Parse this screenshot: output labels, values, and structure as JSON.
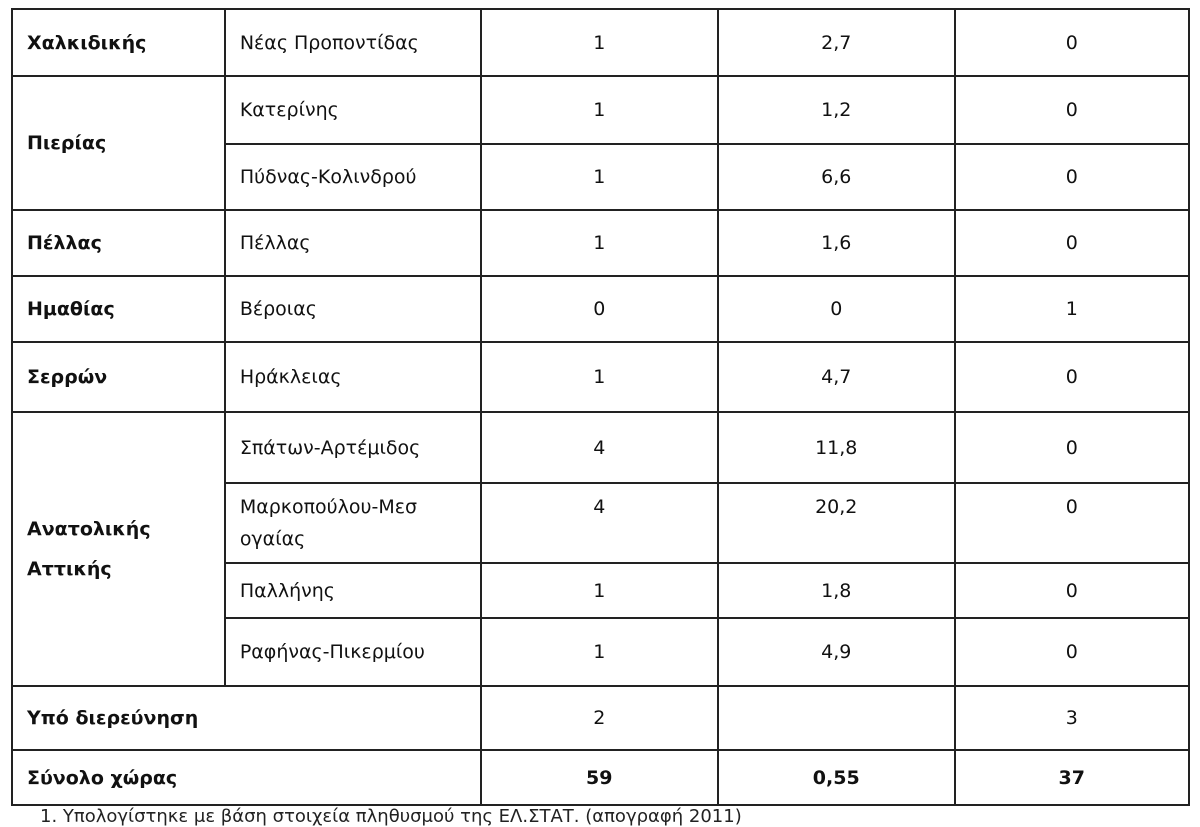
{
  "rows": [
    {
      "region": "Χαλκιδικής",
      "municipality": "Νέας Προποντίδας",
      "c1": "1",
      "c2": "2,7",
      "c3": "0"
    },
    {
      "region": "Πιερίας",
      "municipality": "Κατερίνης",
      "c1": "1",
      "c2": "1,2",
      "c3": "0"
    },
    {
      "municipality": "Πύδνας-Κολινδρού",
      "c1": "1",
      "c2": "6,6",
      "c3": "0"
    },
    {
      "region": "Πέλλας",
      "municipality": "Πέλλας",
      "c1": "1",
      "c2": "1,6",
      "c3": "0"
    },
    {
      "region": "Ημαθίας",
      "municipality": "Βέροιας",
      "c1": "0",
      "c2": "0",
      "c3": "1"
    },
    {
      "region": "Σερρών",
      "municipality": "Ηράκλειας",
      "c1": "1",
      "c2": "4,7",
      "c3": "0"
    },
    {
      "region": "Ανατολικής Αττικής",
      "municipality": "Σπάτων-Αρτέμιδος",
      "c1": "4",
      "c2": "11,8",
      "c3": "0"
    },
    {
      "municipality": "Μαρκοπούλου-Μεσογαίας",
      "c1": "4",
      "c2": "20,2",
      "c3": "0"
    },
    {
      "municipality": "Παλλήνης",
      "c1": "1",
      "c2": "1,8",
      "c3": "0"
    },
    {
      "municipality": "Ραφήνας-Πικερμίου",
      "c1": "1",
      "c2": "4,9",
      "c3": "0"
    }
  ],
  "under_investigation": {
    "label": "Υπό διερεύνηση",
    "c1": "2",
    "c2": "",
    "c3": "3"
  },
  "total": {
    "label": "Σύνολο χώρας",
    "c1": "59",
    "c2": "0,55",
    "c3": "37"
  },
  "footnote": "1.    Υπολογίστηκε με βάση στοιχεία πληθυσμού της ΕΛ.ΣΤΑΤ. (απογραφή 2011)"
}
